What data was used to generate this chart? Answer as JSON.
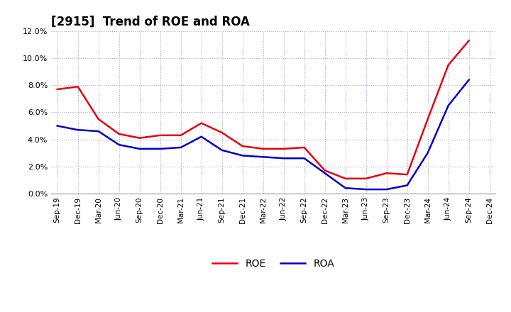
{
  "title": "[2915]  Trend of ROE and ROA",
  "labels": [
    "Sep-19",
    "Dec-19",
    "Mar-20",
    "Jun-20",
    "Sep-20",
    "Dec-20",
    "Mar-21",
    "Jun-21",
    "Sep-21",
    "Dec-21",
    "Mar-22",
    "Jun-22",
    "Sep-22",
    "Dec-22",
    "Mar-23",
    "Jun-23",
    "Sep-23",
    "Dec-23",
    "Mar-24",
    "Jun-24",
    "Sep-24",
    "Dec-24"
  ],
  "ROE": [
    7.7,
    7.9,
    5.5,
    4.4,
    4.1,
    4.3,
    4.3,
    5.2,
    4.5,
    3.5,
    3.3,
    3.3,
    3.4,
    1.7,
    1.1,
    1.1,
    1.5,
    1.4,
    5.5,
    9.5,
    11.3,
    null
  ],
  "ROA": [
    5.0,
    4.7,
    4.6,
    3.6,
    3.3,
    3.3,
    3.4,
    4.2,
    3.2,
    2.8,
    2.7,
    2.6,
    2.6,
    1.5,
    0.4,
    0.3,
    0.3,
    0.6,
    3.0,
    6.5,
    8.4,
    null
  ],
  "roe_color": "#e8000d",
  "roa_color": "#0000cc",
  "ylim": [
    0.0,
    0.12
  ],
  "yticks": [
    0.0,
    0.02,
    0.04,
    0.06,
    0.08,
    0.1,
    0.12
  ],
  "background_color": "#ffffff",
  "grid_color": "#aaaacc",
  "title_fontsize": 12,
  "legend_fontsize": 10,
  "line_width": 1.8
}
